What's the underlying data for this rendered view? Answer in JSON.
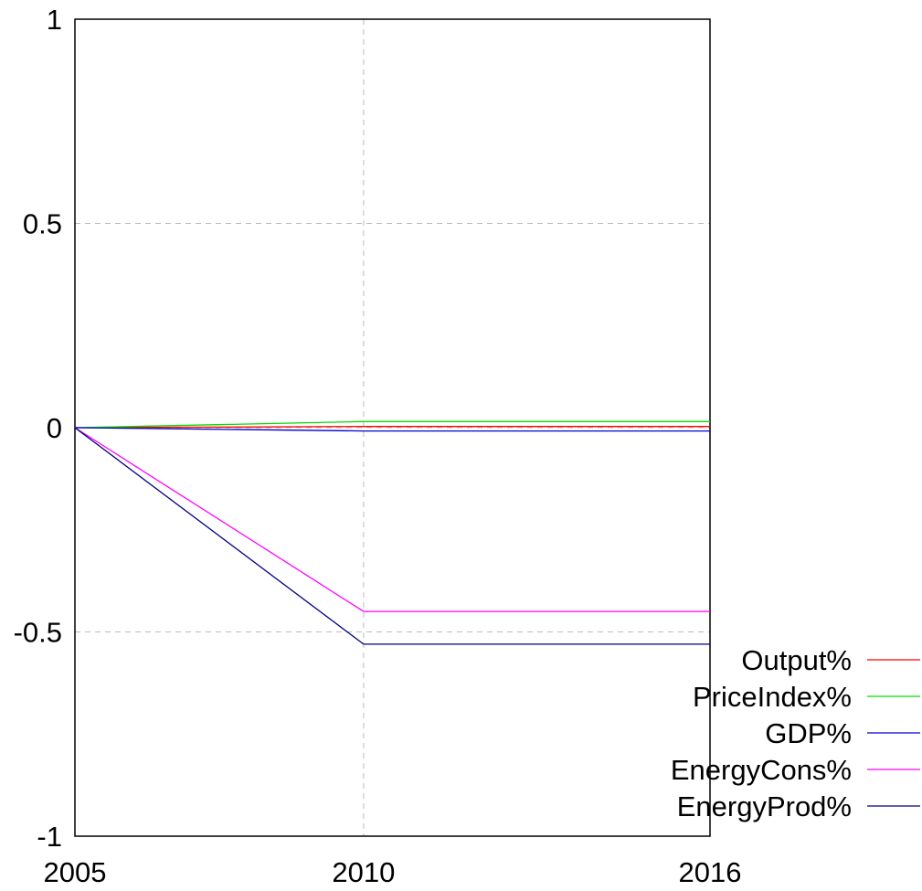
{
  "chart_data": {
    "type": "line",
    "x": [
      2005,
      2010,
      2016
    ],
    "x_tick_labels": [
      "2005",
      "2010",
      "2016"
    ],
    "ylim": [
      -1,
      1
    ],
    "y_ticks": [
      -1,
      -0.5,
      0,
      0.5,
      1
    ],
    "y_tick_labels": [
      "-1",
      "-0.5",
      "0",
      "0.5",
      "1"
    ],
    "grid": true,
    "legend_position": "bottom-right",
    "series": [
      {
        "name": "Output%",
        "color": "#ff0000",
        "values": [
          0,
          0.003,
          0.003
        ]
      },
      {
        "name": "PriceIndex%",
        "color": "#00dd00",
        "values": [
          0,
          0.015,
          0.015
        ]
      },
      {
        "name": "GDP%",
        "color": "#0000cc",
        "values": [
          0,
          -0.008,
          -0.008
        ]
      },
      {
        "name": "EnergyCons%",
        "color": "#ff00ff",
        "values": [
          0,
          -0.45,
          -0.45
        ]
      },
      {
        "name": "EnergyProd%",
        "color": "#000080",
        "values": [
          0,
          -0.53,
          -0.53
        ]
      }
    ]
  }
}
